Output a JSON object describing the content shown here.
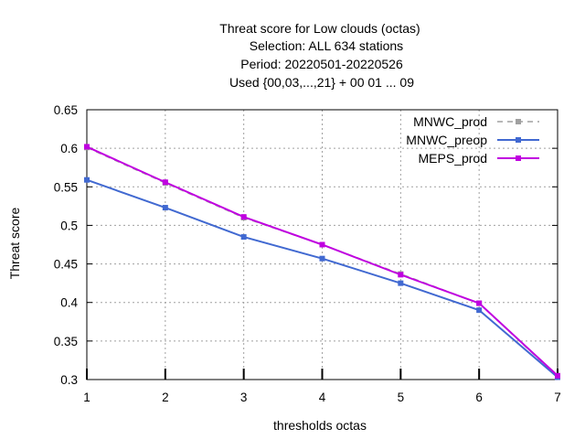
{
  "chart_data": {
    "type": "line",
    "title_lines": [
      "Threat score  for Low clouds (octas)",
      "Selection: ALL    634 stations",
      "Period: 20220501-20220526",
      "Used {00,03,...,21} + 00 01 ... 09"
    ],
    "xlabel": "thresholds octas",
    "ylabel": "Threat score",
    "x": [
      1,
      2,
      3,
      4,
      5,
      6,
      7
    ],
    "xlim": [
      1,
      7
    ],
    "ylim": [
      0.3,
      0.65
    ],
    "xticks": [
      "1",
      "2",
      "3",
      "4",
      "5",
      "6",
      "7"
    ],
    "yticks": [
      "0.3",
      "0.35",
      "0.4",
      "0.45",
      "0.5",
      "0.55",
      "0.6",
      "0.65"
    ],
    "grid": true,
    "legend_position": "top-right",
    "series": [
      {
        "name": "MNWC_prod",
        "color": "#a0a0a0",
        "dash": true,
        "values": [
          0.601,
          0.555,
          0.51,
          0.475,
          0.437,
          0.399,
          0.304
        ]
      },
      {
        "name": "MNWC_preop",
        "color": "#4169d1",
        "dash": false,
        "values": [
          0.559,
          0.523,
          0.485,
          0.457,
          0.425,
          0.39,
          0.303
        ]
      },
      {
        "name": "MEPS_prod",
        "color": "#c000e0",
        "dash": false,
        "values": [
          0.602,
          0.556,
          0.511,
          0.475,
          0.436,
          0.399,
          0.305
        ]
      }
    ]
  }
}
